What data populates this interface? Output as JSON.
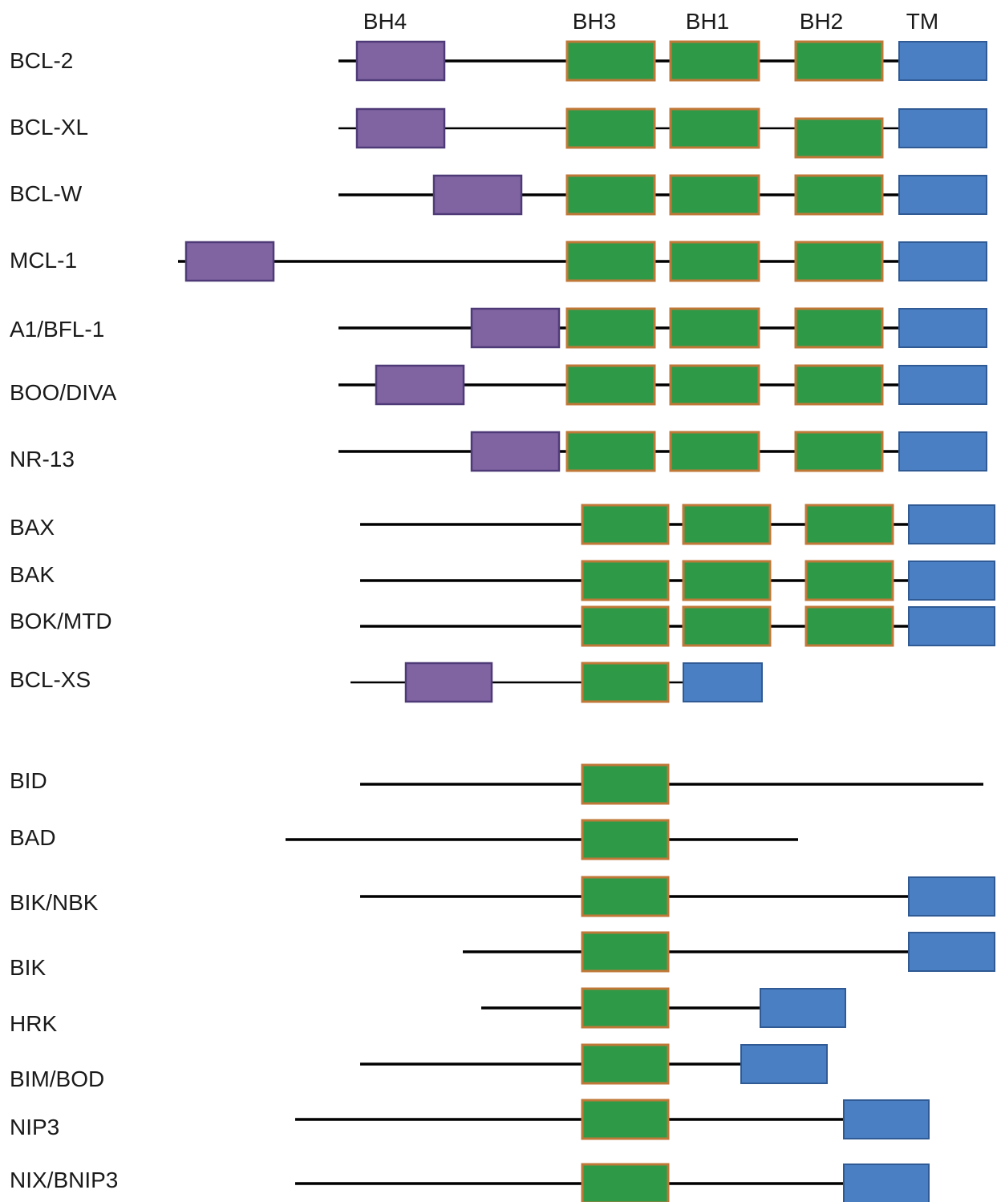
{
  "domain_headers": [
    "BH4",
    "BH3",
    "BH1",
    "BH2",
    "TM"
  ],
  "colors": {
    "bh4_fill": "#8064a2",
    "bh4_stroke": "#4f3a78",
    "bh_fill": "#2e9a48",
    "bh_stroke": "#c07838",
    "tm_fill": "#4a7fc4",
    "tm_stroke": "#2f5a94",
    "line": "#000000",
    "text": "#1a1a1a"
  },
  "proteins": [
    {
      "label": "BCL-2",
      "domains": [
        "BH4",
        "BH3",
        "BH1",
        "BH2",
        "TM"
      ]
    },
    {
      "label": "BCL-XL",
      "domains": [
        "BH4",
        "BH3",
        "BH1",
        "BH2",
        "TM"
      ]
    },
    {
      "label": "BCL-W",
      "domains": [
        "BH4",
        "BH3",
        "BH1",
        "BH2",
        "TM"
      ]
    },
    {
      "label": "MCL-1",
      "domains": [
        "BH4",
        "BH3",
        "BH1",
        "BH2",
        "TM"
      ]
    },
    {
      "label": "A1/BFL-1",
      "domains": [
        "BH4",
        "BH3",
        "BH1",
        "BH2",
        "TM"
      ]
    },
    {
      "label": "BOO/DIVA",
      "domains": [
        "BH4",
        "BH3",
        "BH1",
        "BH2",
        "TM"
      ]
    },
    {
      "label": "NR-13",
      "domains": [
        "BH4",
        "BH3",
        "BH1",
        "BH2",
        "TM"
      ]
    },
    {
      "label": "BAX",
      "domains": [
        "BH3",
        "BH1",
        "BH2",
        "TM"
      ]
    },
    {
      "label": "BAK",
      "domains": [
        "BH3",
        "BH1",
        "BH2",
        "TM"
      ]
    },
    {
      "label": "BOK/MTD",
      "domains": [
        "BH3",
        "BH1",
        "BH2",
        "TM"
      ]
    },
    {
      "label": "BCL-XS",
      "domains": [
        "BH4",
        "BH3",
        "TM"
      ]
    },
    {
      "label": "BID",
      "domains": [
        "BH3"
      ]
    },
    {
      "label": "BAD",
      "domains": [
        "BH3"
      ]
    },
    {
      "label": "BIK/NBK",
      "domains": [
        "BH3",
        "TM"
      ]
    },
    {
      "label": "BIK",
      "domains": [
        "BH3",
        "TM"
      ]
    },
    {
      "label": "HRK",
      "domains": [
        "BH3",
        "TM"
      ]
    },
    {
      "label": "BIM/BOD",
      "domains": [
        "BH3",
        "TM"
      ]
    },
    {
      "label": "NIP3",
      "domains": [
        "BH3",
        "TM"
      ]
    },
    {
      "label": "NIX/BNIP3",
      "domains": [
        "BH3",
        "TM"
      ]
    }
  ]
}
